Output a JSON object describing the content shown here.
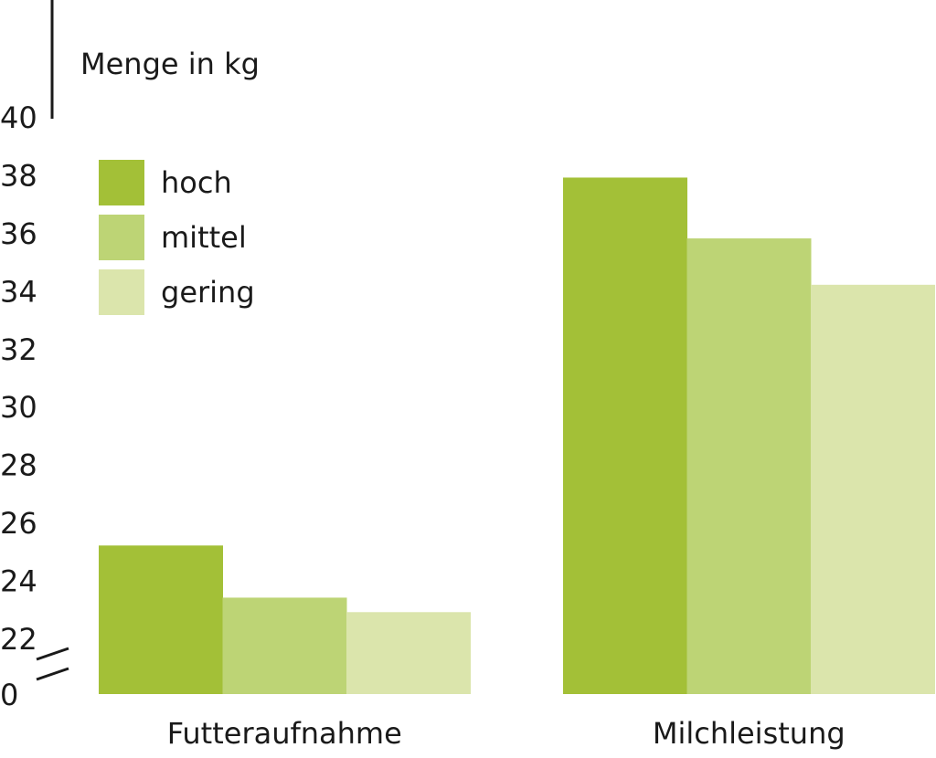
{
  "chart_data": {
    "type": "bar",
    "y_label": "Menge in kg",
    "categories": [
      "Futteraufnahme",
      "Milchleistung"
    ],
    "series": [
      {
        "name": "hoch",
        "color": "#a3c037",
        "values": [
          25.3,
          38.0
        ]
      },
      {
        "name": "mittel",
        "color": "#bdd475",
        "values": [
          23.5,
          35.9
        ]
      },
      {
        "name": "gering",
        "color": "#dbe5ac",
        "values": [
          23.0,
          34.3
        ]
      }
    ],
    "ylim": [
      0,
      40
    ],
    "yticks": [
      0,
      22,
      24,
      26,
      28,
      30,
      32,
      34,
      36,
      38,
      40
    ],
    "axis_break": [
      0,
      22
    ]
  }
}
